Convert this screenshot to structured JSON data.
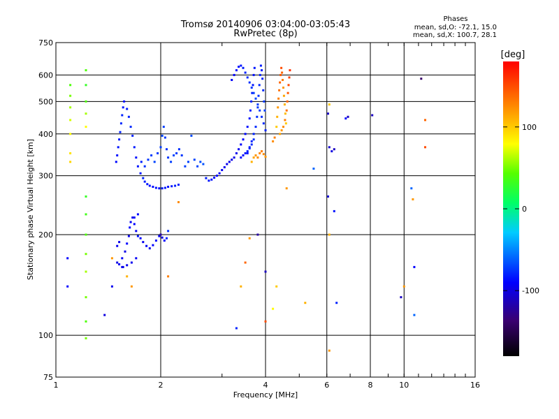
{
  "chart_data": {
    "type": "scatter",
    "title": "Tromsø 20140906 03:04:00-03:05:43",
    "subtitle": "RwPretec (8p)",
    "stats": {
      "title": "Phases",
      "line1": "mean, sd,O: -72.1, 15.0",
      "line2": "mean, sd,X: 100.7, 28.1"
    },
    "xlabel": "Frequency [MHz]",
    "ylabel": "Stationary phase Virtual Height [km]",
    "x_scale": "log",
    "y_scale": "log",
    "xlim": [
      1,
      16
    ],
    "ylim": [
      75,
      750
    ],
    "x_ticks": [
      1,
      2,
      4,
      6,
      8,
      10,
      16
    ],
    "x_tick_labels": [
      "1",
      "2",
      "4",
      "6",
      "8",
      "10",
      "16"
    ],
    "y_ticks": [
      75,
      100,
      200,
      300,
      400,
      500,
      600,
      750
    ],
    "y_tick_labels": [
      "75",
      "100",
      "200",
      "300",
      "400",
      "500",
      "600",
      "750"
    ],
    "grid": true,
    "colorbar": {
      "label": "[deg]",
      "range": [
        -180,
        180
      ],
      "ticks": [
        100,
        0,
        -100
      ],
      "tick_labels": [
        "100",
        "0",
        "-100"
      ]
    },
    "points": [
      [
        1.52,
        163,
        -95
      ],
      [
        1.55,
        170,
        -92
      ],
      [
        1.58,
        178,
        -98
      ],
      [
        1.6,
        188,
        -90
      ],
      [
        1.62,
        198,
        -95
      ],
      [
        1.63,
        210,
        -88
      ],
      [
        1.64,
        218,
        -92
      ],
      [
        1.66,
        225,
        -96
      ],
      [
        1.68,
        215,
        -90
      ],
      [
        1.7,
        205,
        -94
      ],
      [
        1.72,
        198,
        -85
      ],
      [
        1.75,
        195,
        -90
      ],
      [
        1.78,
        190,
        -95
      ],
      [
        1.82,
        185,
        -92
      ],
      [
        1.86,
        182,
        -96
      ],
      [
        1.9,
        186,
        -90
      ],
      [
        1.94,
        192,
        -88
      ],
      [
        1.98,
        198,
        -92
      ],
      [
        2.02,
        196,
        -95
      ],
      [
        2.05,
        192,
        -90
      ],
      [
        2.08,
        195,
        -80
      ],
      [
        2.1,
        205,
        -75
      ],
      [
        1.56,
        160,
        -98
      ],
      [
        1.6,
        162,
        -96
      ],
      [
        1.65,
        165,
        -95
      ],
      [
        1.7,
        170,
        -93
      ],
      [
        1.5,
        185,
        -95
      ],
      [
        1.52,
        190,
        -97
      ],
      [
        1.68,
        225,
        -90
      ],
      [
        1.72,
        230,
        -88
      ],
      [
        1.49,
        330,
        -88
      ],
      [
        1.5,
        345,
        -86
      ],
      [
        1.51,
        365,
        -84
      ],
      [
        1.52,
        385,
        -82
      ],
      [
        1.53,
        405,
        -80
      ],
      [
        1.54,
        430,
        -78
      ],
      [
        1.55,
        455,
        -80
      ],
      [
        1.56,
        480,
        -84
      ],
      [
        1.57,
        500,
        -86
      ],
      [
        1.6,
        475,
        -82
      ],
      [
        1.62,
        450,
        -80
      ],
      [
        1.64,
        420,
        -78
      ],
      [
        1.66,
        395,
        -80
      ],
      [
        1.68,
        365,
        -82
      ],
      [
        1.7,
        340,
        -85
      ],
      [
        1.72,
        320,
        -84
      ],
      [
        1.75,
        305,
        -83
      ],
      [
        1.78,
        295,
        -80
      ],
      [
        1.8,
        288,
        -82
      ],
      [
        1.83,
        283,
        -84
      ],
      [
        1.86,
        280,
        -86
      ],
      [
        1.9,
        278,
        -88
      ],
      [
        1.94,
        276,
        -85
      ],
      [
        1.98,
        275,
        -84
      ],
      [
        2.02,
        275,
        -82
      ],
      [
        2.06,
        276,
        -84
      ],
      [
        2.1,
        278,
        -86
      ],
      [
        2.15,
        279,
        -83
      ],
      [
        2.2,
        280,
        -82
      ],
      [
        2.25,
        282,
        -80
      ],
      [
        1.76,
        330,
        -80
      ],
      [
        1.8,
        320,
        -76
      ],
      [
        1.84,
        335,
        -74
      ],
      [
        1.88,
        345,
        -72
      ],
      [
        1.92,
        330,
        -70
      ],
      [
        1.96,
        350,
        -74
      ],
      [
        2.0,
        365,
        -72
      ],
      [
        2.02,
        395,
        -70
      ],
      [
        2.04,
        420,
        -72
      ],
      [
        2.06,
        390,
        -74
      ],
      [
        2.08,
        360,
        -76
      ],
      [
        2.1,
        340,
        -74
      ],
      [
        2.14,
        330,
        -72
      ],
      [
        2.18,
        345,
        -70
      ],
      [
        2.22,
        350,
        -74
      ],
      [
        2.26,
        360,
        -76
      ],
      [
        2.3,
        345,
        -74
      ],
      [
        2.35,
        320,
        -72
      ],
      [
        2.4,
        330,
        -70
      ],
      [
        2.45,
        395,
        -68
      ],
      [
        2.5,
        335,
        -70
      ],
      [
        2.55,
        320,
        -70
      ],
      [
        2.6,
        330,
        -68
      ],
      [
        2.65,
        325,
        -66
      ],
      [
        2.7,
        295,
        -82
      ],
      [
        2.75,
        290,
        -84
      ],
      [
        2.8,
        292,
        -86
      ],
      [
        2.85,
        296,
        -88
      ],
      [
        2.9,
        300,
        -90
      ],
      [
        2.95,
        305,
        -92
      ],
      [
        3.0,
        312,
        -94
      ],
      [
        3.05,
        318,
        -95
      ],
      [
        3.1,
        325,
        -96
      ],
      [
        3.15,
        330,
        -97
      ],
      [
        3.2,
        335,
        -98
      ],
      [
        3.25,
        340,
        -98
      ],
      [
        3.3,
        350,
        -96
      ],
      [
        3.35,
        360,
        -94
      ],
      [
        3.4,
        372,
        -92
      ],
      [
        3.45,
        385,
        -90
      ],
      [
        3.5,
        400,
        -88
      ],
      [
        3.55,
        420,
        -86
      ],
      [
        3.6,
        445,
        -84
      ],
      [
        3.62,
        470,
        -82
      ],
      [
        3.64,
        500,
        -80
      ],
      [
        3.66,
        530,
        -82
      ],
      [
        3.68,
        560,
        -84
      ],
      [
        3.7,
        600,
        -86
      ],
      [
        3.72,
        630,
        -84
      ],
      [
        3.55,
        350,
        -84
      ],
      [
        3.6,
        365,
        -82
      ],
      [
        3.65,
        380,
        -80
      ],
      [
        3.7,
        400,
        -80
      ],
      [
        3.75,
        420,
        -78
      ],
      [
        3.78,
        450,
        -76
      ],
      [
        3.8,
        480,
        -74
      ],
      [
        3.82,
        520,
        -76
      ],
      [
        3.84,
        560,
        -78
      ],
      [
        3.86,
        600,
        -80
      ],
      [
        3.88,
        640,
        -82
      ],
      [
        3.9,
        620,
        -82
      ],
      [
        3.92,
        585,
        -80
      ],
      [
        3.94,
        540,
        -78
      ],
      [
        3.96,
        500,
        -74
      ],
      [
        3.98,
        470,
        -72
      ],
      [
        3.4,
        340,
        -88
      ],
      [
        3.45,
        345,
        -86
      ],
      [
        3.5,
        350,
        -84
      ],
      [
        3.55,
        355,
        -82
      ],
      [
        3.6,
        362,
        -80
      ],
      [
        3.65,
        372,
        -78
      ],
      [
        3.7,
        385,
        -76
      ],
      [
        3.2,
        580,
        -92
      ],
      [
        3.25,
        600,
        -90
      ],
      [
        3.3,
        620,
        -88
      ],
      [
        3.35,
        635,
        -86
      ],
      [
        3.4,
        640,
        -84
      ],
      [
        3.45,
        630,
        -82
      ],
      [
        3.5,
        610,
        -80
      ],
      [
        3.55,
        590,
        -78
      ],
      [
        3.6,
        570,
        -76
      ],
      [
        3.65,
        550,
        -74
      ],
      [
        3.7,
        530,
        -72
      ],
      [
        3.75,
        510,
        -70
      ],
      [
        3.8,
        490,
        -72
      ],
      [
        3.85,
        470,
        -74
      ],
      [
        3.9,
        450,
        -76
      ],
      [
        3.95,
        430,
        -78
      ],
      [
        4.0,
        410,
        -80
      ],
      [
        3.65,
        330,
        110
      ],
      [
        3.7,
        340,
        115
      ],
      [
        3.75,
        345,
        120
      ],
      [
        3.8,
        340,
        125
      ],
      [
        3.85,
        350,
        128
      ],
      [
        3.9,
        355,
        130
      ],
      [
        3.95,
        348,
        125
      ],
      [
        4.0,
        342,
        120
      ],
      [
        4.3,
        420,
        100
      ],
      [
        4.32,
        450,
        110
      ],
      [
        4.34,
        480,
        120
      ],
      [
        4.36,
        510,
        130
      ],
      [
        4.38,
        540,
        135
      ],
      [
        4.4,
        570,
        140
      ],
      [
        4.42,
        600,
        145
      ],
      [
        4.44,
        630,
        150
      ],
      [
        4.46,
        610,
        140
      ],
      [
        4.48,
        580,
        130
      ],
      [
        4.5,
        550,
        120
      ],
      [
        4.52,
        520,
        115
      ],
      [
        4.54,
        490,
        110
      ],
      [
        4.56,
        460,
        105
      ],
      [
        4.58,
        430,
        100
      ],
      [
        4.4,
        400,
        115
      ],
      [
        4.45,
        410,
        120
      ],
      [
        4.5,
        420,
        125
      ],
      [
        4.55,
        440,
        130
      ],
      [
        4.6,
        470,
        135
      ],
      [
        4.62,
        500,
        140
      ],
      [
        4.64,
        530,
        145
      ],
      [
        4.66,
        560,
        150
      ],
      [
        4.68,
        590,
        155
      ],
      [
        4.7,
        620,
        160
      ],
      [
        4.2,
        380,
        125
      ],
      [
        4.25,
        390,
        130
      ],
      [
        1.1,
        560,
        40
      ],
      [
        1.1,
        520,
        50
      ],
      [
        1.1,
        480,
        60
      ],
      [
        1.1,
        440,
        70
      ],
      [
        1.1,
        400,
        80
      ],
      [
        1.1,
        350,
        90
      ],
      [
        1.1,
        330,
        95
      ],
      [
        1.22,
        620,
        40
      ],
      [
        1.22,
        560,
        30
      ],
      [
        1.22,
        500,
        40
      ],
      [
        1.22,
        460,
        60
      ],
      [
        1.22,
        420,
        80
      ],
      [
        1.22,
        260,
        30
      ],
      [
        1.22,
        230,
        35
      ],
      [
        1.22,
        200,
        40
      ],
      [
        1.22,
        175,
        50
      ],
      [
        1.22,
        155,
        60
      ],
      [
        1.22,
        130,
        50
      ],
      [
        1.22,
        110,
        40
      ],
      [
        1.22,
        98,
        50
      ],
      [
        1.08,
        170,
        -90
      ],
      [
        1.08,
        140,
        -90
      ],
      [
        1.38,
        115,
        -100
      ],
      [
        1.45,
        140,
        -95
      ],
      [
        1.5,
        165,
        -98
      ],
      [
        1.55,
        160,
        -95
      ],
      [
        1.45,
        170,
        120
      ],
      [
        1.6,
        150,
        110
      ],
      [
        1.65,
        140,
        120
      ],
      [
        2.1,
        150,
        130
      ],
      [
        2.25,
        250,
        125
      ],
      [
        3.3,
        105,
        -80
      ],
      [
        3.4,
        140,
        110
      ],
      [
        3.5,
        165,
        140
      ],
      [
        3.6,
        195,
        120
      ],
      [
        4.0,
        110,
        150
      ],
      [
        4.0,
        155,
        -110
      ],
      [
        4.3,
        140,
        100
      ],
      [
        4.2,
        120,
        80
      ],
      [
        4.6,
        275,
        120
      ],
      [
        5.2,
        125,
        110
      ],
      [
        6.1,
        490,
        100
      ],
      [
        6.1,
        200,
        110
      ],
      [
        6.1,
        90,
        120
      ],
      [
        6.05,
        460,
        -110
      ],
      [
        6.1,
        365,
        -105
      ],
      [
        6.2,
        355,
        -100
      ],
      [
        6.3,
        360,
        -110
      ],
      [
        6.05,
        260,
        -105
      ],
      [
        6.3,
        235,
        -85
      ],
      [
        6.4,
        125,
        -80
      ],
      [
        6.8,
        445,
        -90
      ],
      [
        6.9,
        450,
        -110
      ],
      [
        8.1,
        455,
        -110
      ],
      [
        9.8,
        130,
        -110
      ],
      [
        10.0,
        140,
        120
      ],
      [
        10.5,
        275,
        -60
      ],
      [
        10.6,
        255,
        120
      ],
      [
        10.7,
        115,
        -60
      ],
      [
        10.7,
        160,
        -90
      ],
      [
        11.2,
        585,
        -140
      ],
      [
        11.5,
        440,
        140
      ],
      [
        11.5,
        365,
        150
      ],
      [
        5.5,
        315,
        -60
      ],
      [
        3.8,
        200,
        -120
      ],
      [
        2.0,
        200,
        -120
      ]
    ]
  }
}
